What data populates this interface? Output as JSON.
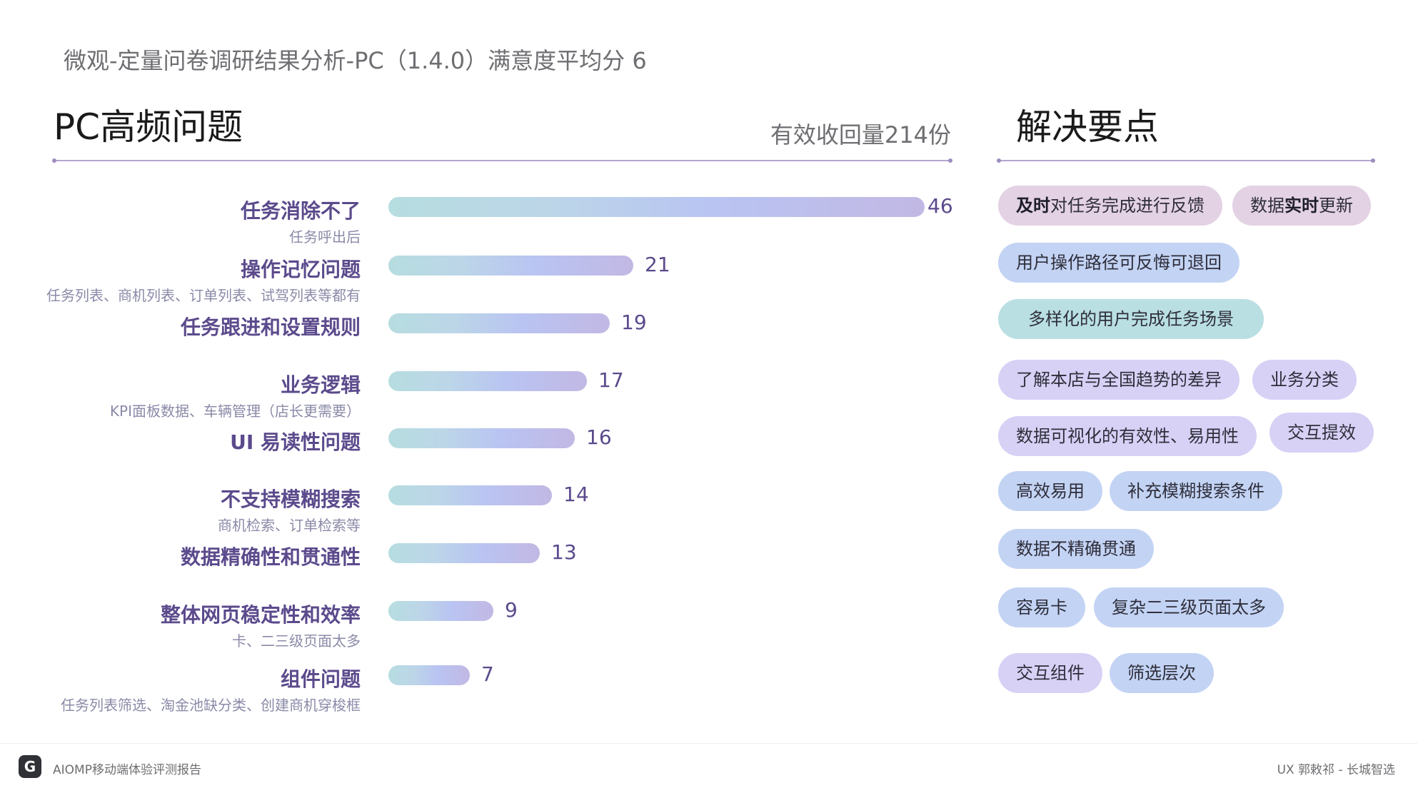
{
  "page_title": "微观-定量问卷调研结果分析-PC（1.4.0）满意度平均分 6",
  "left_section": {
    "title": "PC高频问题",
    "response_count": "有效收回量214份"
  },
  "right_section": {
    "title": "解决要点"
  },
  "chart_data": {
    "type": "bar",
    "orientation": "horizontal",
    "categories": [
      "任务消除不了",
      "操作记忆问题",
      "任务跟进和设置规则",
      "业务逻辑",
      "UI 易读性问题",
      "不支持模糊搜索",
      "数据精确性和贯通性",
      "整体网页稳定性和效率",
      "组件问题"
    ],
    "subtitles": [
      "任务呼出后",
      "任务列表、商机列表、订单列表、试驾列表等都有",
      "",
      "KPI面板数据、车辆管理（店长更需要）",
      "",
      "商机检索、订单检索等",
      "",
      "卡、二三级页面太多",
      "任务列表筛选、淘金池缺分类、创建商机穿梭框"
    ],
    "values": [
      46,
      21,
      19,
      17,
      16,
      14,
      13,
      9,
      7
    ],
    "xlim": [
      0,
      46
    ],
    "grid": false,
    "legend": "none",
    "bar_gradient": [
      "#b6dde0",
      "#b9c4f2",
      "#c2b8e4"
    ]
  },
  "solutions": [
    [
      {
        "bold": "及时",
        "text": "对任务完成进行反馈",
        "color": "pink"
      },
      {
        "pre": "数据",
        "bold": "实时",
        "text": "更新",
        "color": "pink"
      }
    ],
    [
      {
        "text": "用户操作路径可反悔可退回",
        "color": "blue"
      }
    ],
    [
      {
        "text": "多样化的用户完成任务场景",
        "color": "teal"
      }
    ],
    [
      {
        "text": "了解本店与全国趋势的差异",
        "color": "violet"
      },
      {
        "text": "业务分类",
        "color": "violet"
      }
    ],
    [
      {
        "text": "数据可视化的有效性、易用性",
        "color": "violet"
      },
      {
        "text": "交互提效",
        "color": "violet"
      }
    ],
    [
      {
        "text": "高效易用",
        "color": "blue"
      },
      {
        "text": "补充模糊搜索条件",
        "color": "blue"
      }
    ],
    [
      {
        "text": "数据不精确贯通",
        "color": "blue"
      }
    ],
    [
      {
        "text": "容易卡",
        "color": "blue"
      },
      {
        "text": "复杂二三级页面太多",
        "color": "blue"
      }
    ],
    [
      {
        "text": "交互组件",
        "color": "violet"
      },
      {
        "text": "筛选层次",
        "color": "blue"
      }
    ]
  ],
  "footer": {
    "logo": "G",
    "left": "AIOMP移动端体验评测报告",
    "right": "UX 郭敕祁 - 长城智选"
  }
}
